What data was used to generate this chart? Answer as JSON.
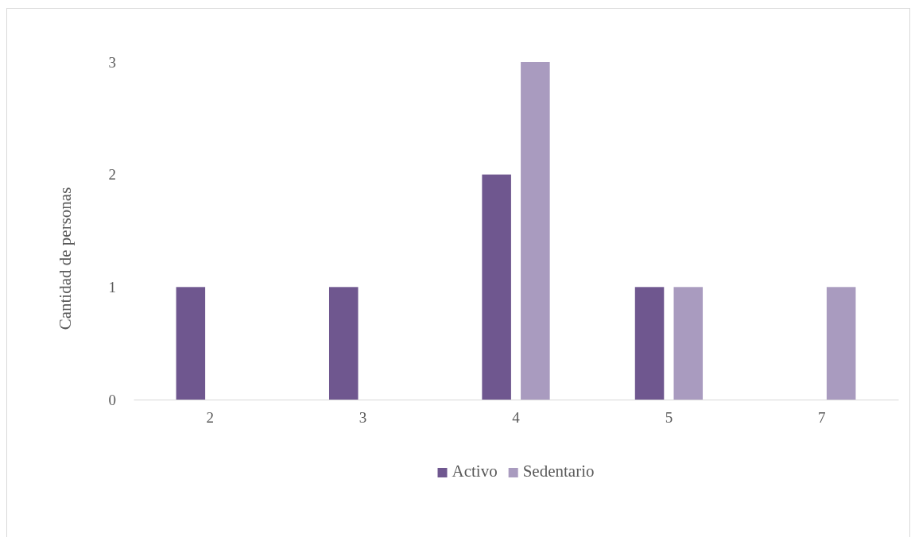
{
  "chart_data": {
    "type": "bar",
    "ylabel": "Cantidad de personas",
    "categories": [
      "2",
      "3",
      "4",
      "5",
      "7"
    ],
    "series": [
      {
        "name": "Activo",
        "color": "#6f578f",
        "values": [
          1,
          1,
          2,
          1,
          0
        ]
      },
      {
        "name": "Sedentario",
        "color": "#a99bbf",
        "values": [
          0,
          0,
          3,
          1,
          1
        ]
      }
    ],
    "ylim": [
      0,
      3
    ],
    "yticks": [
      0,
      1,
      2,
      3
    ],
    "grid": false,
    "legend": "bottom"
  }
}
